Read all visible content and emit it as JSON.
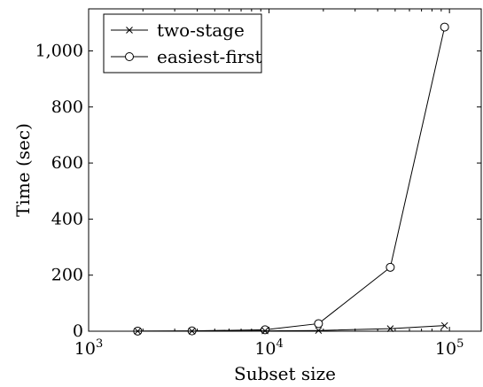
{
  "chart_data": {
    "type": "line",
    "xlabel": "Subset size",
    "ylabel": "Time (sec)",
    "xscale": "log",
    "xlim": [
      1000,
      150000
    ],
    "ylim": [
      0,
      1150
    ],
    "x_ticks": [
      {
        "value": 1000,
        "base": "10",
        "exp": "3"
      },
      {
        "value": 10000,
        "base": "10",
        "exp": "4"
      },
      {
        "value": 100000,
        "base": "10",
        "exp": "5"
      }
    ],
    "y_ticks": [
      {
        "value": 0,
        "label": "0"
      },
      {
        "value": 200,
        "label": "200"
      },
      {
        "value": 400,
        "label": "400"
      },
      {
        "value": 600,
        "label": "600"
      },
      {
        "value": 800,
        "label": "800"
      },
      {
        "value": 1000,
        "label": "1,000"
      }
    ],
    "grid": false,
    "legend_position": "top-left",
    "x": [
      1870,
      3740,
      9500,
      18800,
      47000,
      94000
    ],
    "series": [
      {
        "name": "two-stage",
        "marker": "x",
        "color": "#000000",
        "values": [
          0.2,
          0.4,
          1.2,
          2.5,
          9,
          20
        ]
      },
      {
        "name": "easiest-first",
        "marker": "circle",
        "color": "#000000",
        "values": [
          0.5,
          1.2,
          5,
          27,
          228,
          1085
        ]
      }
    ]
  }
}
